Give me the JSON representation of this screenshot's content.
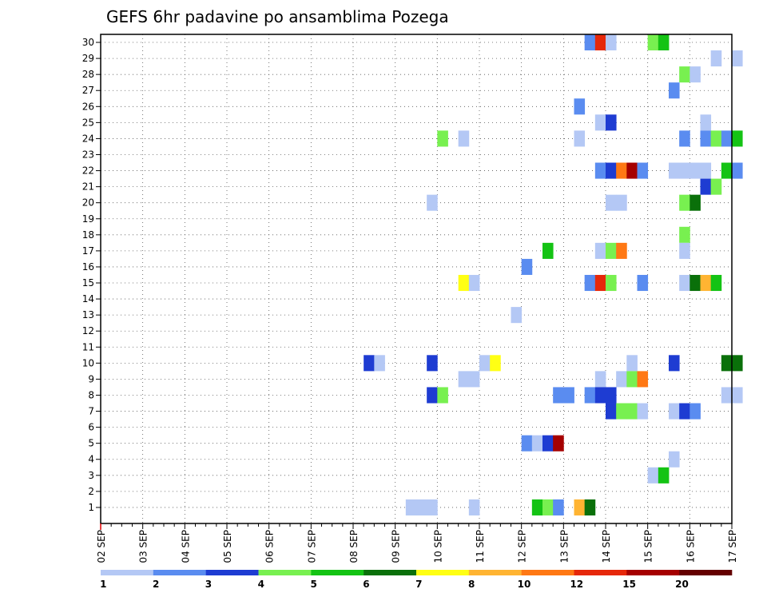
{
  "chart_data": {
    "type": "heatmap",
    "title": "GEFS 6hr padavine po ansamblima Pozega",
    "xlabel": "",
    "ylabel": "",
    "x_ticks": [
      "02 SEP",
      "03 SEP",
      "04 SEP",
      "05 SEP",
      "06 SEP",
      "07 SEP",
      "08 SEP",
      "09 SEP",
      "10 SEP",
      "11 SEP",
      "12 SEP",
      "13 SEP",
      "14 SEP",
      "15 SEP",
      "16 SEP",
      "17 SEP"
    ],
    "y_ticks": [
      1,
      2,
      3,
      4,
      5,
      6,
      7,
      8,
      9,
      10,
      11,
      12,
      13,
      14,
      15,
      16,
      17,
      18,
      19,
      20,
      21,
      22,
      23,
      24,
      25,
      26,
      27,
      28,
      29,
      30
    ],
    "x_unit": "6-hour step starting 02 SEP 00z",
    "grid": true,
    "legend_placement": "bottom",
    "legend": {
      "labels": [
        "1",
        "2",
        "3",
        "4",
        "5",
        "6",
        "7",
        "8",
        "10",
        "12",
        "15",
        "20"
      ],
      "colors": [
        "#b4c8f5",
        "#5a8cf0",
        "#1e3cd2",
        "#78f050",
        "#14c314",
        "#0a700a",
        "#ffff14",
        "#ffb432",
        "#ff7814",
        "#e6280a",
        "#a50000",
        "#640000"
      ]
    },
    "cells": [
      {
        "m": 30,
        "t": [
          [
            46,
            1
          ],
          [
            47,
            9
          ],
          [
            48,
            0
          ],
          [
            52,
            3
          ],
          [
            53,
            4
          ]
        ]
      },
      {
        "m": 29,
        "t": [
          [
            58,
            0
          ],
          [
            60,
            0
          ]
        ]
      },
      {
        "m": 28,
        "t": [
          [
            55,
            3
          ],
          [
            56,
            0
          ]
        ]
      },
      {
        "m": 27,
        "t": [
          [
            54,
            1
          ]
        ]
      },
      {
        "m": 26,
        "t": [
          [
            45,
            1
          ]
        ]
      },
      {
        "m": 25,
        "t": [
          [
            47,
            0
          ],
          [
            48,
            2
          ],
          [
            57,
            0
          ]
        ]
      },
      {
        "m": 24,
        "t": [
          [
            32,
            3
          ],
          [
            34,
            0
          ],
          [
            45,
            0
          ],
          [
            55,
            1
          ],
          [
            57,
            1
          ],
          [
            58,
            3
          ],
          [
            59,
            1
          ],
          [
            60,
            4
          ]
        ]
      },
      {
        "m": 22,
        "t": [
          [
            47,
            1
          ],
          [
            48,
            2
          ],
          [
            49,
            8
          ],
          [
            50,
            10
          ],
          [
            51,
            1
          ],
          [
            54,
            0
          ],
          [
            55,
            0
          ],
          [
            56,
            0
          ],
          [
            57,
            0
          ],
          [
            59,
            4
          ],
          [
            60,
            1
          ]
        ]
      },
      {
        "m": 21,
        "t": [
          [
            57,
            2
          ],
          [
            58,
            3
          ]
        ]
      },
      {
        "m": 20,
        "t": [
          [
            31,
            0
          ],
          [
            48,
            0
          ],
          [
            49,
            0
          ],
          [
            55,
            3
          ],
          [
            56,
            5
          ]
        ]
      },
      {
        "m": 18,
        "t": [
          [
            55,
            3
          ]
        ]
      },
      {
        "m": 17,
        "t": [
          [
            42,
            4
          ],
          [
            47,
            0
          ],
          [
            48,
            3
          ],
          [
            49,
            8
          ],
          [
            55,
            0
          ]
        ]
      },
      {
        "m": 16,
        "t": [
          [
            40,
            1
          ]
        ]
      },
      {
        "m": 15,
        "t": [
          [
            34,
            6
          ],
          [
            35,
            0
          ],
          [
            46,
            1
          ],
          [
            47,
            9
          ],
          [
            48,
            3
          ],
          [
            51,
            1
          ],
          [
            55,
            0
          ],
          [
            56,
            5
          ],
          [
            57,
            7
          ],
          [
            58,
            4
          ]
        ]
      },
      {
        "m": 13,
        "t": [
          [
            39,
            0
          ]
        ]
      },
      {
        "m": 10,
        "t": [
          [
            25,
            2
          ],
          [
            26,
            0
          ],
          [
            31,
            2
          ],
          [
            36,
            0
          ],
          [
            37,
            6
          ],
          [
            50,
            0
          ],
          [
            54,
            2
          ],
          [
            59,
            5
          ],
          [
            60,
            5
          ]
        ]
      },
      {
        "m": 9,
        "t": [
          [
            34,
            0
          ],
          [
            35,
            0
          ],
          [
            47,
            0
          ],
          [
            49,
            0
          ],
          [
            50,
            3
          ],
          [
            51,
            8
          ]
        ]
      },
      {
        "m": 8,
        "t": [
          [
            31,
            2
          ],
          [
            32,
            3
          ],
          [
            43,
            1
          ],
          [
            44,
            1
          ],
          [
            46,
            1
          ],
          [
            47,
            2
          ],
          [
            48,
            2
          ],
          [
            59,
            0
          ],
          [
            60,
            0
          ]
        ]
      },
      {
        "m": 7,
        "t": [
          [
            48,
            2
          ],
          [
            49,
            3
          ],
          [
            50,
            3
          ],
          [
            51,
            0
          ],
          [
            54,
            0
          ],
          [
            55,
            2
          ],
          [
            56,
            1
          ]
        ]
      },
      {
        "m": 5,
        "t": [
          [
            40,
            1
          ],
          [
            41,
            0
          ],
          [
            42,
            2
          ],
          [
            43,
            10
          ]
        ]
      },
      {
        "m": 4,
        "t": [
          [
            54,
            0
          ]
        ]
      },
      {
        "m": 3,
        "t": [
          [
            52,
            0
          ],
          [
            53,
            4
          ]
        ]
      },
      {
        "m": 1,
        "t": [
          [
            29,
            0
          ],
          [
            30,
            0
          ],
          [
            31,
            0
          ],
          [
            35,
            0
          ],
          [
            41,
            4
          ],
          [
            42,
            3
          ],
          [
            43,
            1
          ],
          [
            45,
            7
          ],
          [
            46,
            5
          ]
        ]
      }
    ]
  }
}
